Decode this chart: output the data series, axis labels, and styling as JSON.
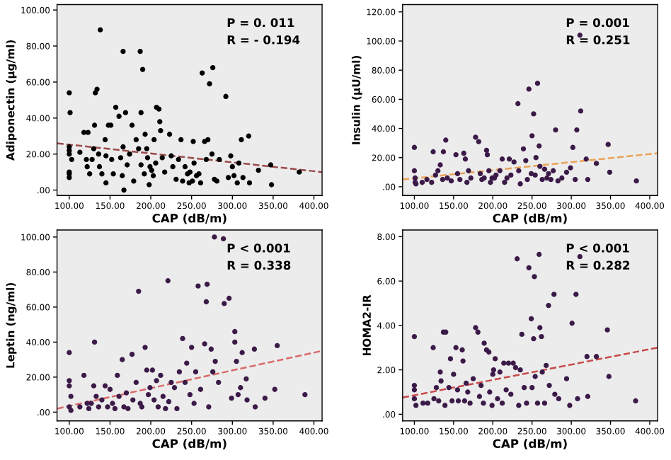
{
  "chart_data": [
    {
      "type": "scatter",
      "xlabel": "CAP (dB/m)",
      "ylabel": "Adiponectin (μg/ml)",
      "xlim": [
        85,
        410
      ],
      "ylim": [
        -3,
        103
      ],
      "marker": "circle",
      "grid": false,
      "xticks": [
        {
          "value": 100,
          "label": "100.00"
        },
        {
          "value": 150,
          "label": "150.00"
        },
        {
          "value": 200,
          "label": "200.00"
        },
        {
          "value": 250,
          "label": "250.00"
        },
        {
          "value": 300,
          "label": "300.00"
        },
        {
          "value": 350,
          "label": "350.00"
        },
        {
          "value": 400,
          "label": "400.00"
        }
      ],
      "yticks": [
        {
          "value": 0,
          "label": ".00"
        },
        {
          "value": 20,
          "label": "20.00"
        },
        {
          "value": 40,
          "label": "40.00"
        },
        {
          "value": 60,
          "label": "60.00"
        },
        {
          "value": 80,
          "label": "80.00"
        },
        {
          "value": 100,
          "label": "100.00"
        }
      ],
      "annotations": [
        "P = 0. 011",
        "R = - 0.194"
      ],
      "series": [
        {
          "color": "#000000",
          "x": [
            100,
            101,
            100,
            100,
            100,
            100,
            100,
            100,
            103,
            113,
            118,
            123,
            121,
            122,
            125,
            128,
            130,
            131,
            132,
            134,
            138,
            136,
            137,
            140,
            144,
            145,
            145,
            148,
            151,
            152,
            154,
            157,
            161,
            163,
            165,
            166,
            167,
            166,
            169,
            171,
            174,
            177,
            179,
            182,
            185,
            187,
            188,
            190,
            188,
            192,
            193,
            195,
            196,
            198,
            199,
            201,
            203,
            204,
            206,
            207,
            210,
            211,
            212,
            214,
            217,
            223,
            225,
            227,
            231,
            234,
            237,
            239,
            242,
            245,
            247,
            248,
            251,
            252,
            253,
            256,
            259,
            261,
            263,
            266,
            268,
            270,
            272,
            275,
            276,
            278,
            281,
            284,
            292,
            295,
            298,
            300,
            302,
            306,
            308,
            311,
            313,
            320,
            321,
            332,
            347,
            348,
            382
          ],
          "values": [
            54,
            43,
            24,
            22,
            20,
            10,
            9,
            7,
            17,
            21,
            32,
            32,
            17,
            13,
            9,
            17,
            23,
            36,
            54,
            56,
            89,
            20,
            13,
            9,
            28,
            19,
            4,
            36,
            36,
            17,
            9,
            46,
            41,
            18,
            8,
            77,
            0,
            24,
            43,
            14,
            20,
            36,
            5,
            28,
            23,
            77,
            43,
            67,
            14,
            9,
            31,
            23,
            18,
            3,
            13,
            11,
            8,
            28,
            15,
            46,
            45,
            38,
            33,
            18,
            10,
            31,
            19,
            13,
            6,
            17,
            28,
            5,
            13,
            9,
            4,
            10,
            5,
            27,
            15,
            8,
            9,
            4,
            65,
            27,
            17,
            28,
            59,
            20,
            68,
            6,
            5,
            17,
            52,
            7,
            19,
            13,
            8,
            4,
            15,
            28,
            7,
            30,
            4,
            11,
            14,
            3,
            10
          ]
        },
        {
          "type": "line",
          "color": "#9b4a4a",
          "line_style": "dashed",
          "marker": "none",
          "x": [
            85,
            410
          ],
          "values": [
            26,
            10
          ]
        }
      ]
    },
    {
      "type": "scatter",
      "xlabel": "CAP (dB/m)",
      "ylabel": "Insulin (μU/ml)",
      "xlim": [
        85,
        410
      ],
      "ylim": [
        -6,
        125
      ],
      "marker": "circle",
      "grid": false,
      "xticks": [
        {
          "value": 100,
          "label": "100.00"
        },
        {
          "value": 150,
          "label": "150.00"
        },
        {
          "value": 200,
          "label": "200.00"
        },
        {
          "value": 250,
          "label": "250.00"
        },
        {
          "value": 300,
          "label": "300.00"
        },
        {
          "value": 350,
          "label": "350.00"
        },
        {
          "value": 400,
          "label": "400.00"
        }
      ],
      "yticks": [
        {
          "value": 0,
          "label": ".00"
        },
        {
          "value": 20,
          "label": "20.00"
        },
        {
          "value": 40,
          "label": "40.00"
        },
        {
          "value": 60,
          "label": "60.00"
        },
        {
          "value": 80,
          "label": "80.00"
        },
        {
          "value": 100,
          "label": "100.00"
        },
        {
          "value": 120,
          "label": "120.00"
        }
      ],
      "annotations": [
        "P = 0.001",
        "R = 0.251"
      ],
      "series": [
        {
          "color": "#3b1a48",
          "x": [
            100,
            100,
            101,
            101,
            102,
            110,
            116,
            122,
            124,
            127,
            130,
            133,
            137,
            140,
            136,
            142,
            147,
            153,
            155,
            158,
            163,
            165,
            167,
            169,
            172,
            178,
            182,
            184,
            186,
            189,
            192,
            193,
            195,
            197,
            199,
            202,
            204,
            209,
            212,
            215,
            218,
            221,
            223,
            227,
            232,
            233,
            235,
            239,
            242,
            244,
            246,
            249,
            250,
            252,
            254,
            255,
            257,
            259,
            260,
            263,
            266,
            269,
            271,
            274,
            277,
            280,
            283,
            288,
            294,
            299,
            302,
            305,
            307,
            311,
            312,
            319,
            321,
            332,
            347,
            349,
            383
          ],
          "values": [
            27,
            11,
            6,
            3,
            2,
            3,
            5,
            3,
            24,
            8,
            11,
            15,
            24,
            32,
            5,
            6,
            4,
            22,
            9,
            5,
            23,
            19,
            3,
            11,
            6,
            34,
            31,
            9,
            5,
            6,
            25,
            22,
            11,
            3,
            6,
            6,
            8,
            11,
            19,
            3,
            6,
            19,
            8,
            17,
            57,
            11,
            2,
            26,
            18,
            5,
            67,
            9,
            35,
            50,
            8,
            20,
            71,
            28,
            14,
            5,
            12,
            6,
            9,
            5,
            11,
            39,
            4,
            6,
            10,
            13,
            27,
            5,
            39,
            104,
            52,
            19,
            5,
            16,
            29,
            10,
            4
          ]
        },
        {
          "type": "line",
          "color": "#eba257",
          "line_style": "dashed",
          "marker": "none",
          "x": [
            85,
            410
          ],
          "values": [
            5,
            23
          ]
        }
      ]
    },
    {
      "type": "scatter",
      "xlabel": "CAP (dB/m)",
      "ylabel": "Leptin (ng/ml)",
      "xlim": [
        85,
        410
      ],
      "ylim": [
        -5,
        104
      ],
      "marker": "circle",
      "grid": false,
      "xticks": [
        {
          "value": 100,
          "label": "100.00"
        },
        {
          "value": 150,
          "label": "150.00"
        },
        {
          "value": 200,
          "label": "200.00"
        },
        {
          "value": 250,
          "label": "250.00"
        },
        {
          "value": 300,
          "label": "300.00"
        },
        {
          "value": 350,
          "label": "350.00"
        },
        {
          "value": 400,
          "label": "400.00"
        }
      ],
      "yticks": [
        {
          "value": 0,
          "label": ".00"
        },
        {
          "value": 20,
          "label": "20.00"
        },
        {
          "value": 40,
          "label": "40.00"
        },
        {
          "value": 60,
          "label": "60.00"
        },
        {
          "value": 80,
          "label": "80.00"
        },
        {
          "value": 100,
          "label": "100.00"
        }
      ],
      "annotations": [
        "P < 0.001",
        "R = 0.338"
      ],
      "series": [
        {
          "color": "#3b1a48",
          "x": [
            100,
            100,
            100,
            102,
            100,
            102,
            118,
            113,
            122,
            124,
            127,
            131,
            130,
            133,
            136,
            140,
            144,
            147,
            150,
            153,
            156,
            159,
            161,
            165,
            167,
            170,
            172,
            177,
            178,
            182,
            185,
            187,
            189,
            193,
            195,
            197,
            199,
            202,
            204,
            207,
            209,
            212,
            215,
            218,
            221,
            222,
            225,
            229,
            232,
            235,
            239,
            242,
            244,
            248,
            250,
            253,
            255,
            258,
            261,
            266,
            268,
            269,
            271,
            274,
            276,
            278,
            279,
            283,
            289,
            290,
            296,
            299,
            303,
            303,
            305,
            307,
            310,
            312,
            317,
            318,
            327,
            328,
            340,
            352,
            355,
            389
          ],
          "values": [
            34,
            18,
            15,
            9,
            3,
            1,
            21,
            3,
            5,
            2,
            5,
            40,
            15,
            9,
            3,
            7,
            15,
            3,
            13,
            5,
            2,
            21,
            9,
            30,
            3,
            11,
            2,
            33,
            7,
            17,
            69,
            5,
            3,
            37,
            24,
            10,
            14,
            24,
            7,
            18,
            3,
            21,
            9,
            2,
            75,
            6,
            17,
            14,
            2,
            23,
            42,
            17,
            28,
            10,
            37,
            5,
            23,
            72,
            13,
            39,
            63,
            73,
            3,
            36,
            23,
            100,
            29,
            17,
            99,
            62,
            65,
            8,
            46,
            40,
            29,
            10,
            14,
            34,
            19,
            7,
            36,
            3,
            8,
            13,
            38,
            10
          ]
        },
        {
          "type": "line",
          "color": "#d86a6a",
          "line_style": "dashed",
          "marker": "none",
          "x": [
            85,
            410
          ],
          "values": [
            2,
            35
          ]
        }
      ]
    },
    {
      "type": "scatter",
      "xlabel": "CAP (dB/m)",
      "ylabel": "HOMA2-IR",
      "xlim": [
        85,
        410
      ],
      "ylim": [
        -0.3,
        8.3
      ],
      "marker": "circle",
      "grid": false,
      "xticks": [
        {
          "value": 100,
          "label": "100.00"
        },
        {
          "value": 150,
          "label": "150.00"
        },
        {
          "value": 200,
          "label": "200.00"
        },
        {
          "value": 250,
          "label": "250.00"
        },
        {
          "value": 300,
          "label": "300.00"
        },
        {
          "value": 350,
          "label": "350.00"
        },
        {
          "value": 400,
          "label": "400.00"
        }
      ],
      "yticks": [
        {
          "value": 0,
          "label": ".00"
        },
        {
          "value": 2,
          "label": "2.00"
        },
        {
          "value": 4,
          "label": "4.00"
        },
        {
          "value": 6,
          "label": "6.00"
        },
        {
          "value": 8,
          "label": "8.00"
        }
      ],
      "annotations": [
        "P < 0.001",
        "R = 0.282"
      ],
      "series": [
        {
          "color": "#3b1a48",
          "x": [
            100,
            100,
            100,
            100,
            102,
            111,
            117,
            124,
            125,
            128,
            131,
            133,
            134,
            137,
            140,
            139,
            144,
            146,
            148,
            150,
            153,
            155,
            156,
            161,
            162,
            164,
            166,
            168,
            171,
            175,
            178,
            181,
            183,
            185,
            188,
            189,
            192,
            195,
            196,
            199,
            200,
            201,
            203,
            206,
            209,
            212,
            214,
            217,
            220,
            223,
            226,
            229,
            231,
            233,
            235,
            237,
            240,
            243,
            246,
            249,
            250,
            252,
            253,
            254,
            257,
            259,
            260,
            262,
            263,
            266,
            268,
            271,
            272,
            278,
            279,
            284,
            294,
            298,
            301,
            306,
            308,
            311,
            320,
            321,
            332,
            346,
            348,
            382
          ],
          "values": [
            3.5,
            1.3,
            1.1,
            0.7,
            0.4,
            0.5,
            0.5,
            3.0,
            0.7,
            1.2,
            0.6,
            1.9,
            1.5,
            3.7,
            3.7,
            0.4,
            1.2,
            2.5,
            0.6,
            1.8,
            3.0,
            1.1,
            0.6,
            2.9,
            2.4,
            0.6,
            1.4,
            1.0,
            0.5,
            1.6,
            3.9,
            3.7,
            0.8,
            1.3,
            0.5,
            3.2,
            2.9,
            2.8,
            1.0,
            0.4,
            1.8,
            2.0,
            2.5,
            0.7,
            1.9,
            0.5,
            2.3,
            1.1,
            2.3,
            0.9,
            2.3,
            2.1,
            7.0,
            0.4,
            2.0,
            3.6,
            1.2,
            0.5,
            6.6,
            4.3,
            1.2,
            3.4,
            6.2,
            1.7,
            0.5,
            7.2,
            3.9,
            3.5,
            1.9,
            0.5,
            2.2,
            4.9,
            1.3,
            5.4,
            0.9,
            0.7,
            1.6,
            0.4,
            4.1,
            5.4,
            0.7,
            7.1,
            2.6,
            0.8,
            2.6,
            3.8,
            1.7,
            0.6
          ]
        },
        {
          "type": "line",
          "color": "#c84a4a",
          "line_style": "dashed",
          "marker": "none",
          "x": [
            85,
            410
          ],
          "values": [
            0.75,
            3.0
          ]
        }
      ]
    }
  ]
}
